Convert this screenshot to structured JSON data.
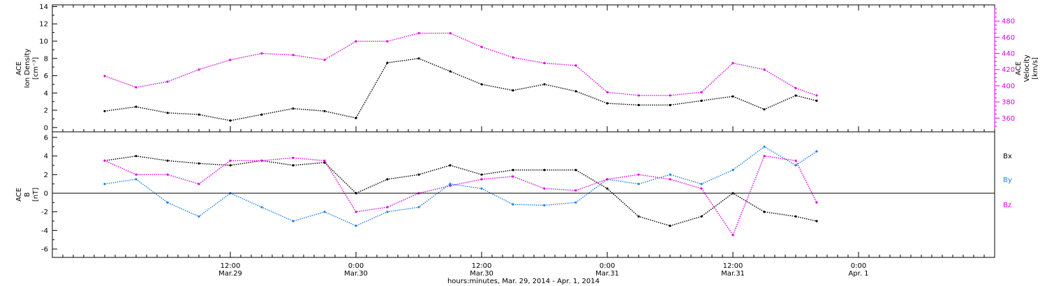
{
  "chart_data": [
    {
      "type": "scatter",
      "panel": "top",
      "ylabel_left_lines": [
        "ACE",
        "Ion Density",
        "[cm⁻³]"
      ],
      "ylabel_right_lines": [
        "ACE",
        "Velocity",
        "[km/s]"
      ],
      "ylim_left": [
        -0.5,
        14.2
      ],
      "yticks_left": [
        0,
        2,
        4,
        6,
        8,
        10,
        12,
        14
      ],
      "ylim_right": [
        343,
        500
      ],
      "yticks_right": [
        360,
        380,
        400,
        420,
        440,
        460,
        480
      ],
      "colors": {
        "density": "#000000",
        "velocity": "#e000e0"
      },
      "series": [
        {
          "key": "density",
          "axis": "left",
          "x": [
            0,
            3,
            6,
            9,
            12,
            15,
            18,
            21,
            24,
            27,
            30,
            33,
            36,
            39,
            42,
            45,
            48,
            51,
            54,
            57,
            60,
            63,
            66,
            68
          ],
          "y": [
            1.9,
            2.4,
            1.7,
            1.5,
            0.8,
            1.5,
            2.2,
            1.9,
            1.1,
            7.5,
            8.0,
            6.5,
            5.0,
            4.3,
            5.0,
            4.2,
            2.8,
            2.6,
            2.6,
            3.1,
            3.6,
            2.1,
            3.7,
            3.1
          ]
        },
        {
          "key": "velocity",
          "axis": "right",
          "x": [
            0,
            3,
            6,
            9,
            12,
            15,
            18,
            21,
            24,
            27,
            30,
            33,
            36,
            39,
            42,
            45,
            48,
            51,
            54,
            57,
            60,
            63,
            66,
            68
          ],
          "y": [
            412,
            398,
            405,
            420,
            432,
            440,
            438,
            432,
            455,
            455,
            465,
            465,
            448,
            435,
            428,
            425,
            392,
            388,
            388,
            392,
            428,
            420,
            397,
            388
          ]
        }
      ]
    },
    {
      "type": "scatter",
      "panel": "bottom",
      "ylabel_lines": [
        "ACE",
        "B",
        "[nT]"
      ],
      "ylim": [
        -6.9,
        6.6
      ],
      "yticks": [
        -6,
        -4,
        -2,
        0,
        2,
        4,
        6
      ],
      "zero_line": true,
      "colors": {
        "bx": "#000000",
        "by": "#1a80e6",
        "bz": "#e000e0"
      },
      "series": [
        {
          "key": "bx",
          "x": [
            0,
            3,
            6,
            9,
            12,
            15,
            18,
            21,
            24,
            27,
            30,
            33,
            36,
            39,
            42,
            45,
            48,
            51,
            54,
            57,
            60,
            63,
            66,
            68
          ],
          "y": [
            3.5,
            4.0,
            3.5,
            3.2,
            3.0,
            3.5,
            3.0,
            3.3,
            0.0,
            1.5,
            2.0,
            3.0,
            2.0,
            2.5,
            2.5,
            2.5,
            0.5,
            -2.5,
            -3.5,
            -2.5,
            0.0,
            -2.0,
            -2.5,
            -3.0
          ]
        },
        {
          "key": "by",
          "x": [
            0,
            3,
            6,
            9,
            12,
            15,
            18,
            21,
            24,
            27,
            30,
            33,
            36,
            39,
            42,
            45,
            48,
            51,
            54,
            57,
            60,
            63,
            66,
            68
          ],
          "y": [
            1.0,
            1.5,
            -1.0,
            -2.5,
            0.0,
            -1.5,
            -3.0,
            -2.0,
            -3.5,
            -2.0,
            -1.5,
            1.0,
            0.5,
            -1.2,
            -1.3,
            -1.0,
            1.5,
            1.0,
            2.0,
            1.0,
            2.5,
            5.0,
            3.0,
            4.5
          ]
        },
        {
          "key": "bz",
          "x": [
            0,
            3,
            6,
            9,
            12,
            15,
            18,
            21,
            24,
            27,
            30,
            33,
            36,
            39,
            42,
            45,
            48,
            51,
            54,
            57,
            60,
            63,
            66,
            68
          ],
          "y": [
            3.5,
            2.0,
            2.0,
            1.0,
            3.5,
            3.5,
            3.8,
            3.5,
            -2.0,
            -1.5,
            0.0,
            0.8,
            1.5,
            1.8,
            0.5,
            0.3,
            1.5,
            2.0,
            1.5,
            0.5,
            -4.5,
            4.0,
            3.5,
            -1.0
          ]
        }
      ],
      "legend": [
        {
          "key": "bx",
          "label": "Bx",
          "color": "#000000"
        },
        {
          "key": "by",
          "label": "By",
          "color": "#1a80e6"
        },
        {
          "key": "bz",
          "label": "Bz",
          "color": "#e000e0"
        }
      ]
    }
  ],
  "x_axis": {
    "range_hours": [
      -5,
      85
    ],
    "major_ticks": [
      {
        "x": 12,
        "line1": "12:00",
        "line2": "Mar.29"
      },
      {
        "x": 24,
        "line1": "0:00",
        "line2": "Mar.30"
      },
      {
        "x": 36,
        "line1": "12:00",
        "line2": "Mar.30"
      },
      {
        "x": 48,
        "line1": "0:00",
        "line2": "Mar.31"
      },
      {
        "x": 60,
        "line1": "12:00",
        "line2": "Mar.31"
      },
      {
        "x": 72,
        "line1": "0:00",
        "line2": "Apr. 1"
      }
    ],
    "minor_step_hours": 1,
    "title": "hours:minutes, Mar. 29, 2014 - Apr. 1, 2014"
  }
}
